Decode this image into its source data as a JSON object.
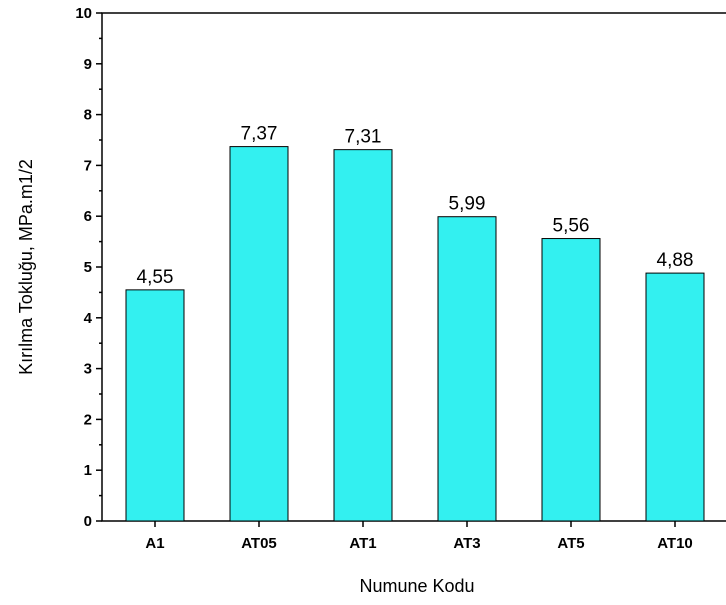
{
  "chart_data": {
    "type": "bar",
    "title": "",
    "xlabel": "Numune Kodu",
    "ylabel": "Kırılma Tokluğu, MPa.m1/2",
    "categories": [
      "A1",
      "AT05",
      "AT1",
      "AT3",
      "AT5",
      "AT10"
    ],
    "values": [
      4.55,
      7.37,
      7.31,
      5.99,
      5.56,
      4.88
    ],
    "value_labels": [
      "4,55",
      "7,37",
      "7,31",
      "5,99",
      "5,56",
      "4,88"
    ],
    "ylim": [
      0,
      10
    ],
    "yticks": [
      "0",
      "1",
      "2",
      "3",
      "4",
      "5",
      "6",
      "7",
      "8",
      "9",
      "10"
    ],
    "grid": false,
    "legend": "none",
    "bar_color": "#33f0f0",
    "bar_edge_color": "#000000"
  }
}
